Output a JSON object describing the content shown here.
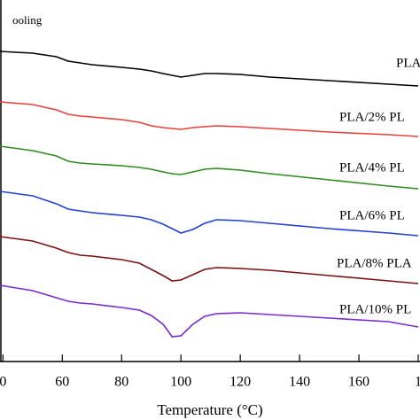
{
  "chart_data": {
    "type": "line",
    "annotation": "ooling",
    "xlabel": "Temperature (°C)",
    "x": [
      39,
      50,
      58,
      62,
      66,
      70,
      80,
      86,
      90,
      94,
      97,
      100,
      104,
      108,
      112,
      120,
      130,
      150,
      170,
      180
    ],
    "xlim": [
      39,
      180.6
    ],
    "xticks": [
      {
        "value": 40,
        "label": "0"
      },
      60,
      80,
      100,
      120,
      140,
      160,
      {
        "value": 180,
        "label": "1"
      }
    ],
    "ylim": [
      0,
      408
    ],
    "series": [
      {
        "name": "PLA",
        "color": "#000000",
        "values": [
          350,
          348,
          344,
          339,
          337,
          335,
          332,
          330,
          328,
          325,
          323,
          321,
          323,
          325,
          325,
          324,
          321,
          317,
          313,
          311
        ]
      },
      {
        "name": "PLA/2% PL",
        "color": "#e8403a",
        "values": [
          293,
          290,
          284,
          279,
          277,
          276,
          273,
          270,
          266,
          264,
          263,
          262,
          264,
          265,
          266,
          265,
          263,
          259,
          256,
          254
        ]
      },
      {
        "name": "PLA/4% PL",
        "color": "#2e8b1e",
        "values": [
          243,
          238,
          232,
          226,
          224,
          223,
          221,
          219,
          217,
          214,
          212,
          211,
          214,
          217,
          218,
          216,
          212,
          205,
          198,
          195
        ]
      },
      {
        "name": "PLA/6% PL",
        "color": "#2040d0",
        "values": [
          192,
          187,
          178,
          172,
          170,
          168,
          165,
          163,
          160,
          155,
          150,
          145,
          149,
          156,
          160,
          159,
          156,
          150,
          145,
          142
        ]
      },
      {
        "name": "PLA/8% PLA",
        "color": "#7a1010",
        "values": [
          141,
          136,
          128,
          123,
          120,
          119,
          115,
          111,
          104,
          97,
          91,
          92,
          98,
          104,
          106,
          105,
          103,
          97,
          91,
          88
        ]
      },
      {
        "name": "PLA/10% PL",
        "color": "#7a28d0",
        "values": [
          86,
          80,
          72,
          68,
          66,
          65,
          61,
          58,
          52,
          42,
          28,
          29,
          42,
          51,
          54,
          55,
          53,
          49,
          45,
          39
        ]
      }
    ]
  }
}
